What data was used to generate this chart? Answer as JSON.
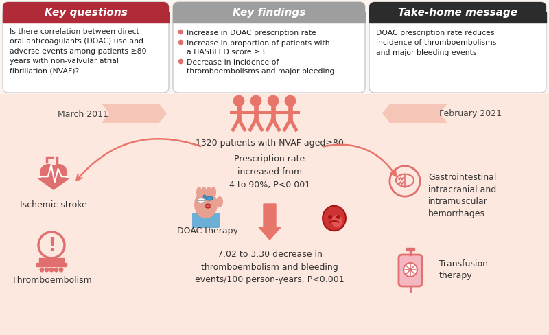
{
  "bg_color": "#fdf5f0",
  "panel1_header_color": "#b02a37",
  "panel2_header_color": "#9e9e9e",
  "panel3_header_color": "#2c2c2c",
  "panel_header_text_color": "#ffffff",
  "panel1_title": "Key questions",
  "panel2_title": "Key findings",
  "panel3_title": "Take-home message",
  "panel1_body": "Is there correlation between direct\noral anticoagulants (DOAC) use and\nadverse events among patients ≥80\nyears with non-valvular atrial\nfibrillation (NVAF)?",
  "panel2_bullets": [
    "Increase in DOAC prescription rate",
    "Increase in proportion of patients with\na HASBLED score ≥3",
    "Decrease in incidence of\nthromboembolisms and major bleeding"
  ],
  "panel3_body": "DOAC prescription rate reduces\nincidence of thromboembolisms\nand major bleeding events",
  "date_left": "March 2011",
  "date_right": "February 2021",
  "patients_text": "1320 patients with NVAF aged≥80",
  "prescription_text": "Prescription rate\nincreased from\n4 to 90%, P<0.001",
  "doac_label": "DOAC therapy",
  "outcome_text": "7.02 to 3.30 decrease in\nthromboembolism and bleeding\nevents/100 person-years, P<0.001",
  "ischemic_label": "Ischemic stroke",
  "thrombo_label": "Thromboembolism",
  "gastro_label": "Gastrointestinal\nintracranial and\nintramuscular\nhemorrhages",
  "transfusion_label": "Transfusion\ntherapy",
  "salmon_color": "#e8756a",
  "light_salmon": "#f5c5b8",
  "pink_color": "#f4a0a0",
  "icon_color": "#e07070",
  "bullet_color": "#e07070",
  "bottom_bg": "#fde8df"
}
